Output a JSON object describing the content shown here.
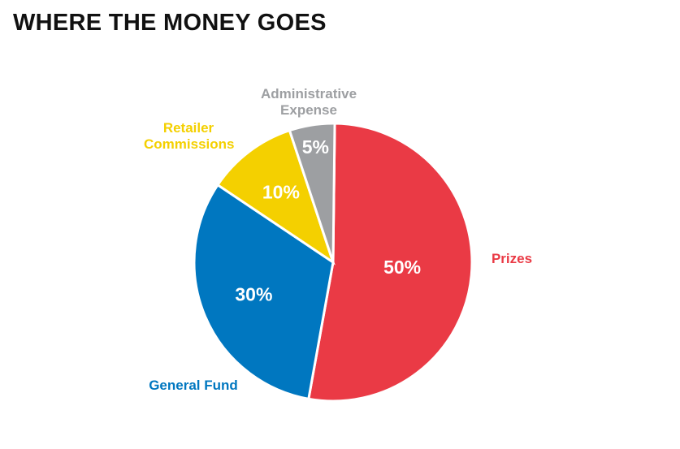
{
  "chart_data": {
    "type": "pie",
    "title": "WHERE THE MONEY GOES",
    "categories": [
      "Prizes",
      "General Fund",
      "Retailer Commissions",
      "Administrative Expense"
    ],
    "values": [
      50,
      30,
      10,
      5
    ],
    "value_labels": [
      "50%",
      "30%",
      "10%",
      "5%"
    ],
    "colors": [
      "#ea3a45",
      "#0077c0",
      "#f4d000",
      "#9d9fa2"
    ]
  }
}
